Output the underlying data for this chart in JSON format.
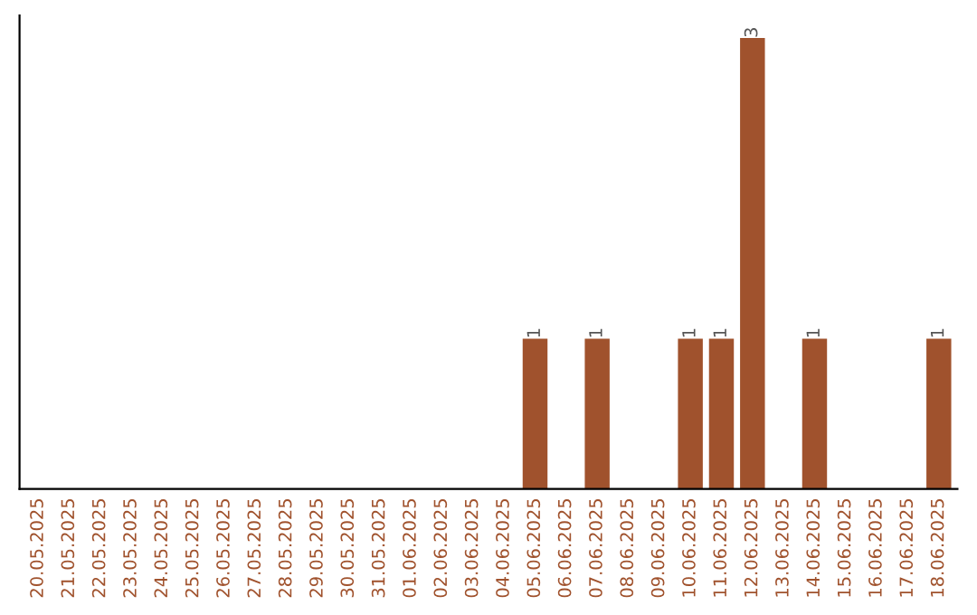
{
  "chart_data": {
    "type": "bar",
    "categories": [
      "20.05.2025",
      "21.05.2025",
      "22.05.2025",
      "23.05.2025",
      "24.05.2025",
      "25.05.2025",
      "26.05.2025",
      "27.05.2025",
      "28.05.2025",
      "29.05.2025",
      "30.05.2025",
      "31.05.2025",
      "01.06.2025",
      "02.06.2025",
      "03.06.2025",
      "04.06.2025",
      "05.06.2025",
      "06.06.2025",
      "07.06.2025",
      "08.06.2025",
      "09.06.2025",
      "10.06.2025",
      "11.06.2025",
      "12.06.2025",
      "13.06.2025",
      "14.06.2025",
      "15.06.2025",
      "16.06.2025",
      "17.06.2025",
      "18.06.2025"
    ],
    "values": [
      null,
      null,
      null,
      null,
      null,
      null,
      null,
      null,
      null,
      null,
      null,
      null,
      null,
      null,
      null,
      null,
      1,
      null,
      1,
      null,
      null,
      1,
      1,
      3,
      null,
      1,
      null,
      null,
      null,
      1
    ],
    "data_labels": true,
    "color": "#a0522d",
    "tick_labels": "x",
    "grid": false,
    "legend": false
  }
}
